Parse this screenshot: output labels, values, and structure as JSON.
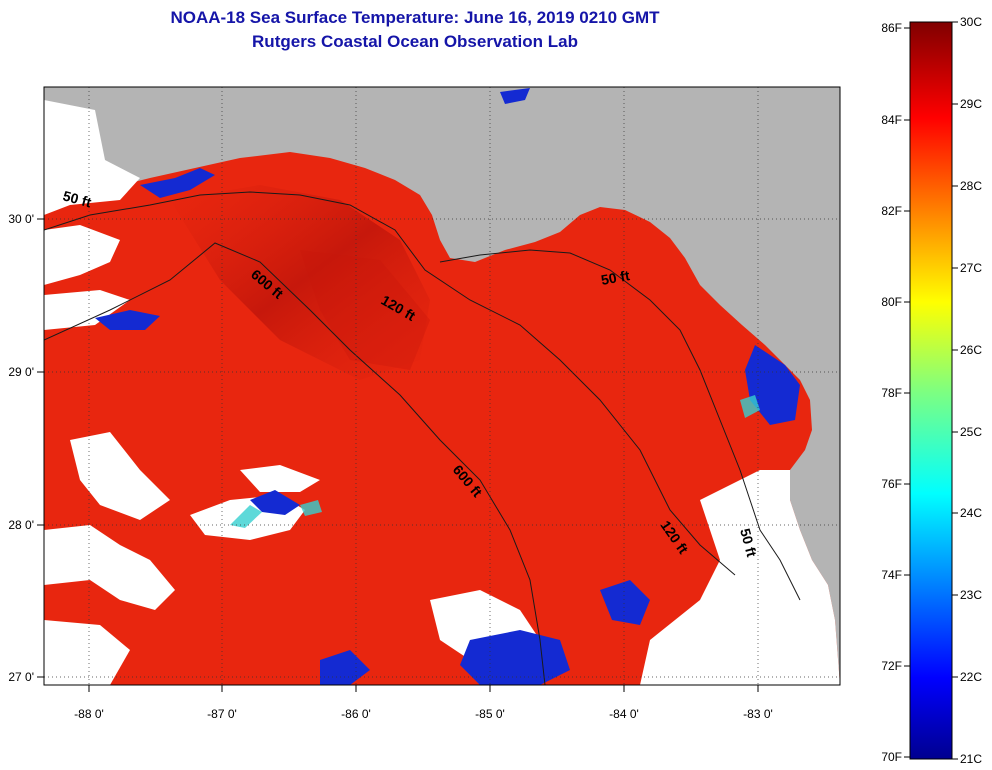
{
  "title_line1": "NOAA-18 Sea Surface Temperature:  June 16, 2019 0210 GMT",
  "title_line2": "Rutgers Coastal Ocean Observation Lab",
  "lon_ticks": [
    "-88 0'",
    "-87 0'",
    "-86 0'",
    "-85 0'",
    "-84 0'",
    "-83 0'"
  ],
  "lat_ticks": [
    "30 0'",
    "29 0'",
    "28 0'",
    "27 0'"
  ],
  "contour_labels": [
    "50 ft",
    "600 ft",
    "120 ft",
    "50 ft",
    "600 ft",
    "120 ft",
    "50 ft"
  ],
  "colorbar": {
    "fahrenheit": [
      "86F",
      "84F",
      "82F",
      "80F",
      "78F",
      "76F",
      "74F",
      "72F",
      "70F"
    ],
    "celsius": [
      "30C",
      "29C",
      "28C",
      "27C",
      "26C",
      "25C",
      "24C",
      "23C",
      "22C",
      "21C"
    ]
  },
  "colors": {
    "land": "#b4b4b4",
    "cloud": "#ffffff",
    "sst_warm": "#e8260f",
    "sst_hot": "#c0140a",
    "sst_cool_patch": "#142ad2",
    "title": "#1515a8"
  }
}
